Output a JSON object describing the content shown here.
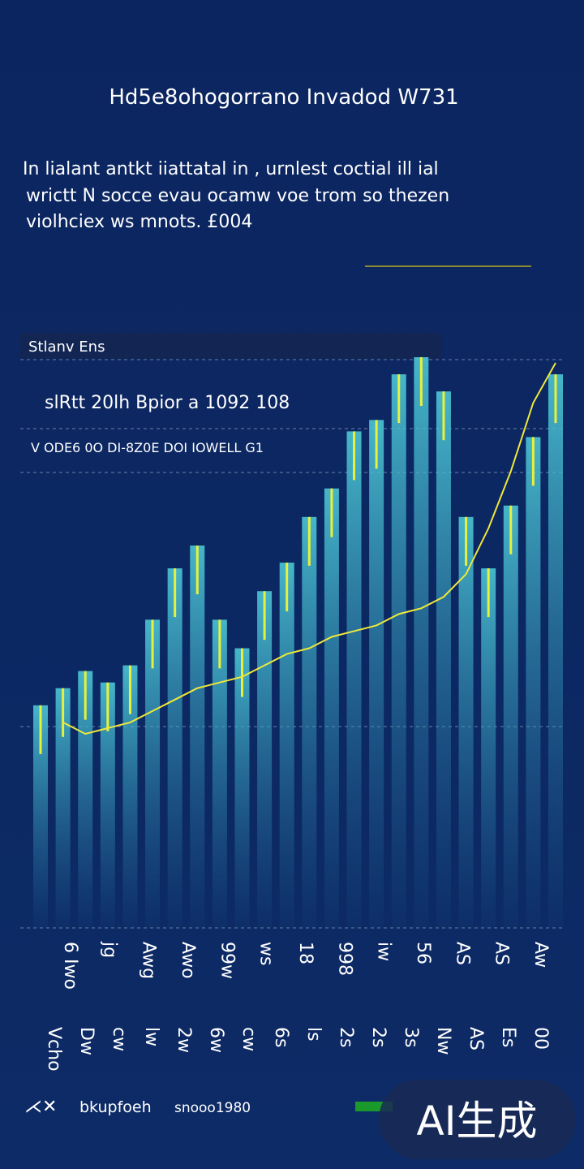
{
  "header": {
    "title": "Hd5e8ohogorrano Invadod W731"
  },
  "intro": [
    "In lialant antkt iiattatal in , urnlest coctial ill ial",
    "wrictt N socce evau ocamw voe trom so thezen",
    "violhciex ws mnots. £004"
  ],
  "panel": {
    "heading": "Stlanv Ens",
    "headline": "slRtt 20lh Bpior a 1092 108",
    "subline": "V ODE6 0O DI-8Z0E DOI IOWELL G1"
  },
  "chart_data": {
    "type": "bar",
    "categories": [
      null,
      null,
      null,
      null,
      null,
      null,
      null,
      null,
      null,
      null,
      null,
      null,
      null,
      null,
      null,
      null,
      null,
      null,
      null,
      null,
      null,
      null,
      null,
      null
    ],
    "series": [
      {
        "name": "bkupfoeh",
        "color": "#3fb3c8",
        "values": [
          39,
          42,
          45,
          43,
          46,
          54,
          63,
          67,
          54,
          49,
          59,
          64,
          72,
          77,
          87,
          89,
          97,
          100,
          94,
          72,
          63,
          74,
          86,
          97
        ]
      },
      {
        "name": "snooo1980",
        "color": "#f0e83a",
        "values": [
          null,
          36,
          34,
          35,
          36,
          38,
          40,
          42,
          43,
          44,
          46,
          48,
          49,
          51,
          52,
          53,
          55,
          56,
          58,
          62,
          70,
          80,
          92,
          99
        ]
      }
    ],
    "ylim": [
      0,
      100
    ]
  },
  "axis_labels_top": [
    "6 Iwo",
    "jg",
    "Awg",
    "Awo",
    "99w",
    "ws",
    "18",
    "998",
    "iw",
    "56",
    "AS",
    "AS",
    "Aw"
  ],
  "axis_labels_bottom": [
    "Vcho",
    "Dw",
    "cw",
    "lw",
    "2w",
    "6w",
    "cw",
    "6s",
    "ls",
    "2s",
    "2s",
    "3s",
    "Nw",
    "AS",
    "Es",
    "00"
  ],
  "watermark": "AI生成"
}
